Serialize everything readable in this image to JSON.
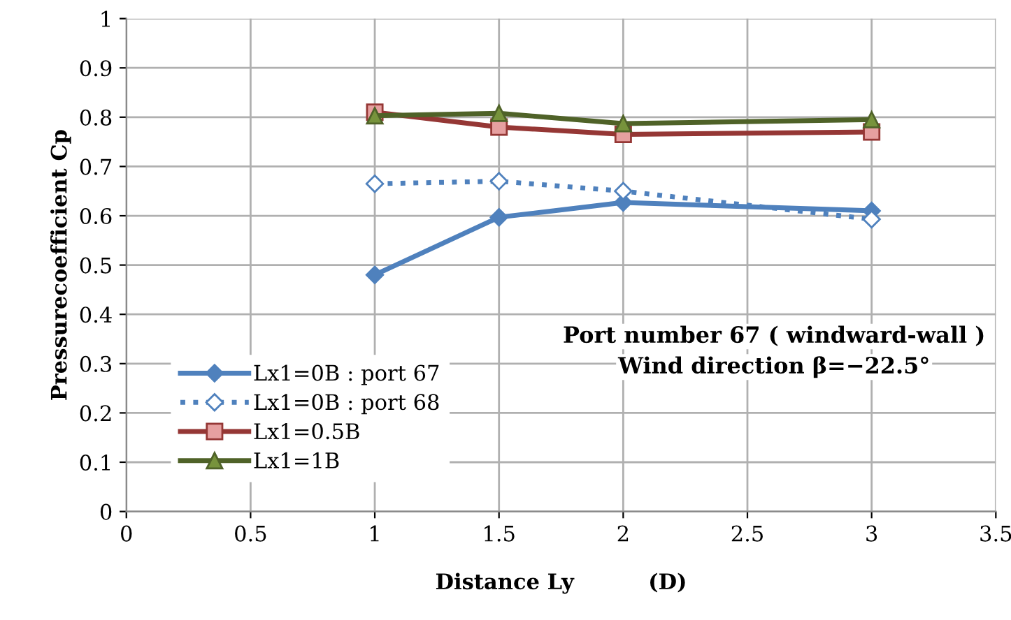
{
  "chart_data": {
    "type": "line",
    "xlabel": "Distance Ly          (D)",
    "ylabel": "Pressurecoefficient Cp",
    "xlim": [
      0,
      3.5
    ],
    "xticks": [
      0,
      0.5,
      1,
      1.5,
      2,
      2.5,
      3,
      3.5
    ],
    "ylim": [
      0,
      1
    ],
    "yticks": [
      0,
      0.1,
      0.2,
      0.3,
      0.4,
      0.5,
      0.6,
      0.7,
      0.8,
      0.9,
      1
    ],
    "x": [
      1,
      1.5,
      2,
      3
    ],
    "grid": true,
    "legend": "bottom left",
    "annotations": [
      "Port number 67 ( windward-wall )",
      "Wind direction β=−22.5°"
    ],
    "series": [
      {
        "name": "Lx1=0B : port 67",
        "color": "#4f81bd",
        "values": [
          0.48,
          0.597,
          0.627,
          0.61
        ],
        "marker": "diamond",
        "line_style": "solid"
      },
      {
        "name": "Lx1=0B : port 68",
        "color": "#4f81bd",
        "values": [
          0.665,
          0.67,
          0.65,
          0.593
        ],
        "marker": "diamond",
        "line_style": "dotted"
      },
      {
        "name": "Lx1=0.5B",
        "color": "#953735",
        "values": [
          0.81,
          0.78,
          0.765,
          0.77
        ],
        "marker": "square",
        "line_style": "solid"
      },
      {
        "name": "Lx1=1B",
        "color": "#4f6228",
        "values": [
          0.803,
          0.808,
          0.787,
          0.795
        ],
        "marker": "triangle",
        "line_style": "solid"
      }
    ]
  }
}
